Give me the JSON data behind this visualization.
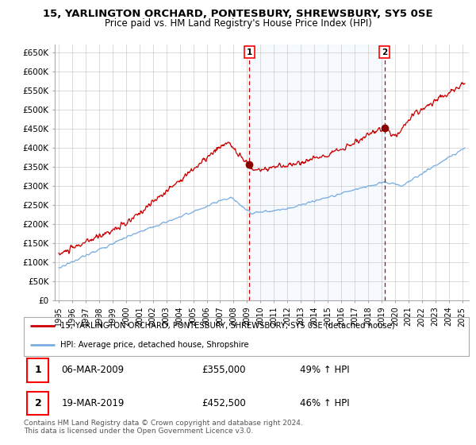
{
  "title": "15, YARLINGTON ORCHARD, PONTESBURY, SHREWSBURY, SY5 0SE",
  "subtitle": "Price paid vs. HM Land Registry's House Price Index (HPI)",
  "ylabel_ticks": [
    "£0",
    "£50K",
    "£100K",
    "£150K",
    "£200K",
    "£250K",
    "£300K",
    "£350K",
    "£400K",
    "£450K",
    "£500K",
    "£550K",
    "£600K",
    "£650K"
  ],
  "ytick_values": [
    0,
    50000,
    100000,
    150000,
    200000,
    250000,
    300000,
    350000,
    400000,
    450000,
    500000,
    550000,
    600000,
    650000
  ],
  "red_line_color": "#cc0000",
  "blue_line_color": "#7aade0",
  "shade_color": "#ddeeff",
  "marker1_date": 2009.18,
  "marker1_value": 355000,
  "marker2_date": 2019.22,
  "marker2_value": 452500,
  "legend_line1": "15, YARLINGTON ORCHARD, PONTESBURY, SHREWSBURY, SY5 0SE (detached house)",
  "legend_line2": "HPI: Average price, detached house, Shropshire",
  "table_row1": [
    "1",
    "06-MAR-2009",
    "£355,000",
    "49% ↑ HPI"
  ],
  "table_row2": [
    "2",
    "19-MAR-2019",
    "£452,500",
    "46% ↑ HPI"
  ],
  "footnote": "Contains HM Land Registry data © Crown copyright and database right 2024.\nThis data is licensed under the Open Government Licence v3.0.",
  "bg_color": "#ffffff",
  "grid_color": "#cccccc",
  "xmin": 1994.7,
  "xmax": 2025.5
}
